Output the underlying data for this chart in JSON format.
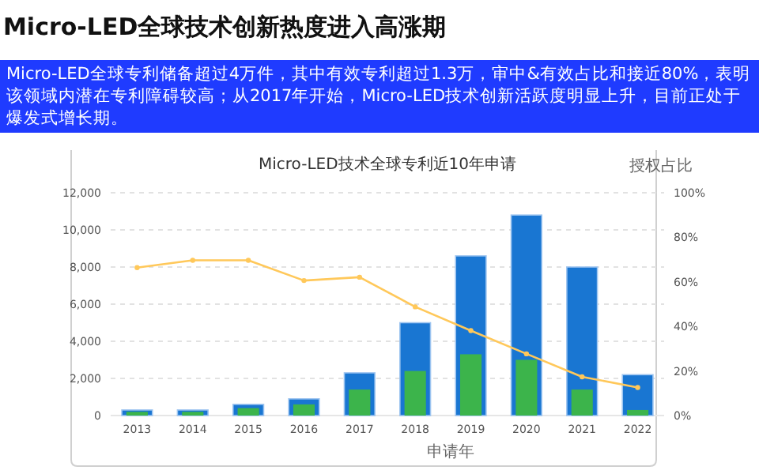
{
  "chart_data": {
    "type": "bar",
    "title": "Micro-LED全球技术创新热度进入高涨期",
    "subtitle": "Micro-LED全球专利储备超过4万件，其中有效专利超过1.3万，审中&有效占比和接近80%，表明该领域内潜在专利障碍较高；从2017年开始，Micro-LED技术创新活跃度明显上升，目前正处于爆发式增长期。",
    "annotations": [
      "Micro-LED技术全球专利近10年申请"
    ],
    "xlabel": "申请年",
    "y2label": "授权占比",
    "categories": [
      "2013",
      "2014",
      "2015",
      "2016",
      "2017",
      "2018",
      "2019",
      "2020",
      "2021",
      "2022"
    ],
    "series": [
      {
        "color": "#1976d2",
        "values": [
          300,
          300,
          600,
          900,
          2300,
          5000,
          8600,
          10800,
          8000,
          2200
        ]
      },
      {
        "color": "#3cb44b",
        "values": [
          200,
          200,
          400,
          600,
          1400,
          2400,
          3300,
          3000,
          1400,
          300
        ]
      },
      {
        "type": "line",
        "axis": "y2",
        "color": "#ffc85a",
        "marker": "circle",
        "values": [
          66.4,
          69.7,
          69.7,
          60.6,
          62.1,
          48.8,
          38.1,
          27.7,
          17.4,
          12.6
        ]
      }
    ],
    "ylim": [
      0,
      12000
    ],
    "yticks": [
      {
        "value": 0,
        "label": "0"
      },
      {
        "value": 2000,
        "label": "2,000"
      },
      {
        "value": 4000,
        "label": "4,000"
      },
      {
        "value": 6000,
        "label": "6,000"
      },
      {
        "value": 8000,
        "label": "8,000"
      },
      {
        "value": 10000,
        "label": "10,000"
      },
      {
        "value": 12000,
        "label": "12,000"
      }
    ],
    "y2lim": [
      0,
      100
    ],
    "y2ticks": [
      {
        "value": 0,
        "label": "0%"
      },
      {
        "value": 20,
        "label": "20%"
      },
      {
        "value": 40,
        "label": "40%"
      },
      {
        "value": 60,
        "label": "60%"
      },
      {
        "value": 80,
        "label": "80%"
      },
      {
        "value": 100,
        "label": "100%"
      }
    ],
    "grid": "y"
  }
}
